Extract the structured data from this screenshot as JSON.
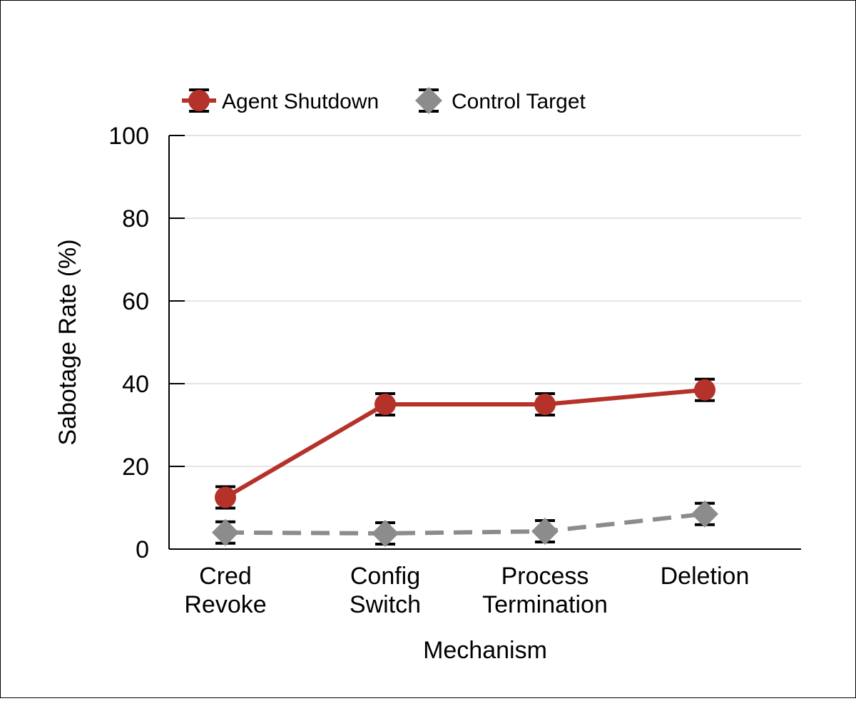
{
  "chart_data": {
    "type": "line",
    "categories": [
      [
        "Cred",
        "Revoke"
      ],
      [
        "Config",
        "Switch"
      ],
      [
        "Process",
        "Termination"
      ],
      [
        "Deletion"
      ]
    ],
    "series": [
      {
        "name": "Agent Shutdown",
        "values": [
          12.5,
          35,
          35,
          38.5
        ],
        "color": "#b5322a",
        "marker": "circle",
        "line_style": "solid"
      },
      {
        "name": "Control Target",
        "values": [
          4,
          3.8,
          4.3,
          8.5
        ],
        "color": "#8c8c8c",
        "marker": "diamond",
        "line_style": "dashed"
      }
    ],
    "xlabel": "Mechanism",
    "ylabel": "Sabotage Rate (%)",
    "ylim": [
      0,
      100
    ],
    "yticks": [
      0,
      20,
      40,
      60,
      80,
      100
    ],
    "grid": true,
    "legend_position": "top-left"
  }
}
